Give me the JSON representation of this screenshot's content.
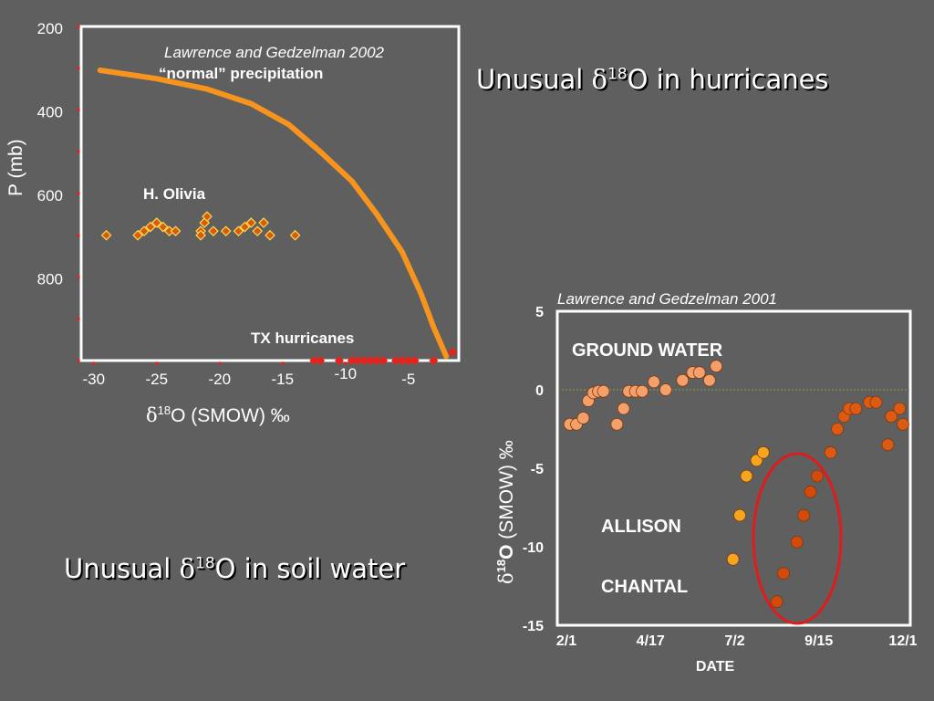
{
  "headings": {
    "hurricanes": {
      "pre": "Unusual ",
      "delta": "δ",
      "sup": "18",
      "post": "O in hurricanes"
    },
    "soil": {
      "pre": "Unusual ",
      "delta": "δ",
      "sup": "18",
      "post": "O in soil water"
    }
  },
  "chart_data": [
    {
      "type": "scatter",
      "citation": "Lawrence and Gedzelman 2002",
      "ylabel": "P (mb)",
      "xlabel": {
        "delta": "δ",
        "sup": "18",
        "rest": "O (SMOW) ‰"
      },
      "xlim": [
        -31,
        -1
      ],
      "ylim": [
        200,
        1000
      ],
      "y_inverted": true,
      "x_ticks": [
        -30,
        -25,
        -20,
        -15,
        -10,
        -5
      ],
      "y_ticks": [
        200,
        400,
        600,
        800
      ],
      "annotations": {
        "normal": "“normal” precipitation",
        "olivia": "H. Olivia",
        "tx": "TX hurricanes"
      },
      "colors": {
        "curve": "#f7941d",
        "olivia_fill": "#d75a0f",
        "olivia_stroke": "#ffd84a",
        "tx": "#e8221a",
        "frame": "#ffffff"
      },
      "series": [
        {
          "name": "“normal” precipitation",
          "style": "line",
          "points": [
            [
              -29.5,
              305
            ],
            [
              -25,
              325
            ],
            [
              -21,
              350
            ],
            [
              -17.5,
              385
            ],
            [
              -14.5,
              435
            ],
            [
              -12,
              500
            ],
            [
              -9.5,
              570
            ],
            [
              -7.5,
              650
            ],
            [
              -5.5,
              740
            ],
            [
              -4,
              840
            ],
            [
              -3,
              920
            ],
            [
              -2,
              990
            ]
          ]
        },
        {
          "name": "H. Olivia",
          "style": "diamond",
          "points": [
            [
              -29,
              700
            ],
            [
              -26.5,
              700
            ],
            [
              -26,
              690
            ],
            [
              -25.5,
              680
            ],
            [
              -25,
              670
            ],
            [
              -24.5,
              680
            ],
            [
              -24,
              690
            ],
            [
              -23.5,
              690
            ],
            [
              -21.5,
              690
            ],
            [
              -21.5,
              700
            ],
            [
              -21.2,
              670
            ],
            [
              -21,
              655
            ],
            [
              -20.5,
              690
            ],
            [
              -19.5,
              690
            ],
            [
              -18.5,
              690
            ],
            [
              -18,
              680
            ],
            [
              -17.5,
              670
            ],
            [
              -17,
              690
            ],
            [
              -16.5,
              670
            ],
            [
              -16,
              700
            ],
            [
              -14,
              700
            ]
          ]
        },
        {
          "name": "TX hurricanes",
          "style": "diamond",
          "points": [
            [
              -12.5,
              1000
            ],
            [
              -12,
              1000
            ],
            [
              -10.5,
              1000
            ],
            [
              -9.5,
              1000
            ],
            [
              -9,
              1000
            ],
            [
              -8.5,
              1000
            ],
            [
              -8,
              1000
            ],
            [
              -7.5,
              1000
            ],
            [
              -7,
              1000
            ],
            [
              -6,
              1000
            ],
            [
              -5.5,
              1000
            ],
            [
              -5,
              1000
            ],
            [
              -4.5,
              1000
            ],
            [
              -3,
              1000
            ],
            [
              -1.5,
              980
            ]
          ]
        }
      ]
    },
    {
      "type": "scatter",
      "citation": "Lawrence and Gedzelman 2001",
      "ylabel": {
        "delta": "δ",
        "sup": "18",
        "bold": "O",
        "rest": " (SMOW) ‰"
      },
      "xlabel": "DATE",
      "x_ticks": [
        "2/1",
        "4/17",
        "7/2",
        "9/15",
        "12/1"
      ],
      "y_ticks": [
        5,
        0,
        -5,
        -10,
        -15
      ],
      "ylim": [
        -15,
        5
      ],
      "annotations": {
        "ground": "GROUND WATER",
        "allison": "ALLISON",
        "chantal": "CHANTAL"
      },
      "colors": {
        "ground": "#f5a06b",
        "allison": "#f7a51e",
        "chantal": "#d34a0b",
        "late": "#dd5a13",
        "ellipse": "#e01b1b",
        "zero_line": "#8da04a"
      },
      "series": [
        {
          "name": "GROUND WATER",
          "color_key": "ground",
          "points": [
            [
              0.01,
              -2.2
            ],
            [
              0.03,
              -2.2
            ],
            [
              0.05,
              -1.8
            ],
            [
              0.065,
              -0.7
            ],
            [
              0.08,
              -0.2
            ],
            [
              0.095,
              -0.1
            ],
            [
              0.11,
              -0.1
            ],
            [
              0.15,
              -2.2
            ],
            [
              0.17,
              -1.2
            ],
            [
              0.185,
              -0.1
            ],
            [
              0.205,
              -0.1
            ],
            [
              0.225,
              -0.1
            ],
            [
              0.26,
              0.5
            ],
            [
              0.295,
              0
            ],
            [
              0.345,
              0.6
            ],
            [
              0.375,
              1.1
            ],
            [
              0.395,
              1.1
            ],
            [
              0.425,
              0.6
            ],
            [
              0.445,
              1.5
            ]
          ]
        },
        {
          "name": "ALLISON",
          "color_key": "allison",
          "points": [
            [
              0.495,
              -10.8
            ],
            [
              0.515,
              -8
            ],
            [
              0.535,
              -5.5
            ],
            [
              0.565,
              -4.5
            ],
            [
              0.585,
              -4
            ]
          ]
        },
        {
          "name": "CHANTAL",
          "color_key": "chantal",
          "points": [
            [
              0.625,
              -13.5
            ],
            [
              0.645,
              -11.7
            ],
            [
              0.685,
              -9.7
            ],
            [
              0.705,
              -8
            ],
            [
              0.725,
              -6.5
            ],
            [
              0.745,
              -5.5
            ]
          ]
        },
        {
          "name": "",
          "color_key": "late",
          "points": [
            [
              0.785,
              -4
            ],
            [
              0.805,
              -2.5
            ],
            [
              0.825,
              -1.7
            ],
            [
              0.84,
              -1.2
            ],
            [
              0.86,
              -1.2
            ],
            [
              0.9,
              -0.8
            ],
            [
              0.92,
              -0.8
            ],
            [
              0.955,
              -3.5
            ],
            [
              0.965,
              -1.7
            ],
            [
              0.99,
              -1.2
            ],
            [
              1.0,
              -2.2
            ]
          ]
        }
      ]
    }
  ]
}
